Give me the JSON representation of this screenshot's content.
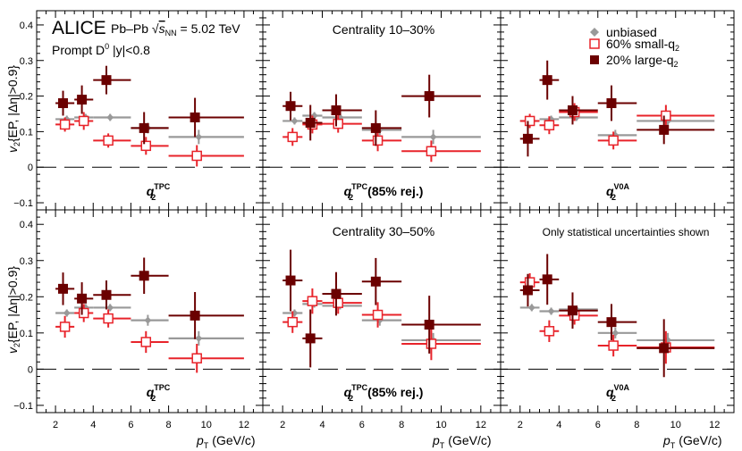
{
  "figure": {
    "experiment": "ALICE",
    "system": "Pb–Pb",
    "energy_sqrt": "s",
    "energy_sub": "NN",
    "energy_value": "= 5.02 TeV",
    "particle_prefix": "Prompt D",
    "particle_sup": "0",
    "rapidity_cut": "|y|<0.8",
    "note": "Only statistical uncertainties shown",
    "y_axis_label": "v",
    "y_axis_sub": "2",
    "y_axis_method": "{EP, |Δη|>0.9}",
    "x_axis_label": "p",
    "x_axis_sub": "T",
    "x_axis_units": "(GeV/c)",
    "legend": [
      {
        "label": "unbiased",
        "color": "#999999",
        "marker": "diamond"
      },
      {
        "label": "60% small-q",
        "sub": "2",
        "color": "#e8232a",
        "marker": "open-square"
      },
      {
        "label": "20% large-q",
        "sub": "2",
        "color": "#6b0000",
        "marker": "filled-square"
      }
    ],
    "centralities": [
      "Centrality 10–30%",
      "Centrality 30–50%"
    ],
    "estimators": [
      {
        "main": "q",
        "sub": "2",
        "sup": "TPC",
        "extra": ""
      },
      {
        "main": "q",
        "sub": "2",
        "sup": "TPC",
        "extra": "(85% rej.)"
      },
      {
        "main": "q",
        "sub": "2",
        "sup": "V0A",
        "extra": ""
      }
    ],
    "x_ticks": [
      "2",
      "4",
      "6",
      "8",
      "10",
      "12"
    ],
    "y_ticks": [
      "−0.1",
      "0",
      "0.1",
      "0.2",
      "0.3",
      "0.4"
    ]
  },
  "chart_data": {
    "type": "scatter",
    "xlim": [
      1,
      13
    ],
    "ylim": [
      -0.12,
      0.44
    ],
    "series_names": [
      "unbiased",
      "60% small-q2",
      "20% large-q2"
    ],
    "series_colors": [
      "#999999",
      "#e8232a",
      "#6b0000"
    ],
    "panels": [
      {
        "row": 0,
        "col": 0,
        "centrality": "Centrality 10–30%",
        "estimator": "q2 TPC",
        "series": [
          {
            "name": "unbiased",
            "points": [
              {
                "x": 2.5,
                "xlo": 2,
                "xhi": 3,
                "y": 0.135,
                "yerr": 0.01
              },
              {
                "x": 3.5,
                "xlo": 3,
                "xhi": 4,
                "y": 0.14,
                "yerr": 0.01
              },
              {
                "x": 4.8,
                "xlo": 4,
                "xhi": 6,
                "y": 0.14,
                "yerr": 0.01
              },
              {
                "x": 6.8,
                "xlo": 6,
                "xhi": 8,
                "y": 0.11,
                "yerr": 0.015
              },
              {
                "x": 9.5,
                "xlo": 8,
                "xhi": 12,
                "y": 0.085,
                "yerr": 0.02
              }
            ]
          },
          {
            "name": "60% small-q2",
            "points": [
              {
                "x": 2.5,
                "xlo": 2,
                "xhi": 3,
                "y": 0.12,
                "yerr": 0.02
              },
              {
                "x": 3.5,
                "xlo": 3,
                "xhi": 4,
                "y": 0.13,
                "yerr": 0.025
              },
              {
                "x": 4.8,
                "xlo": 4,
                "xhi": 6,
                "y": 0.075,
                "yerr": 0.02
              },
              {
                "x": 6.8,
                "xlo": 6,
                "xhi": 8,
                "y": 0.06,
                "yerr": 0.025
              },
              {
                "x": 9.5,
                "xlo": 8,
                "xhi": 12,
                "y": 0.032,
                "yerr": 0.03
              }
            ]
          },
          {
            "name": "20% large-q2",
            "points": [
              {
                "x": 2.5,
                "xlo": 2,
                "xhi": 3,
                "y": 0.18,
                "yerr": 0.035
              },
              {
                "x": 3.5,
                "xlo": 3,
                "xhi": 4,
                "y": 0.19,
                "yerr": 0.04
              },
              {
                "x": 4.8,
                "xlo": 4,
                "xhi": 6,
                "y": 0.245,
                "yerr": 0.04
              },
              {
                "x": 6.8,
                "xlo": 6,
                "xhi": 8,
                "y": 0.11,
                "yerr": 0.045
              },
              {
                "x": 9.5,
                "xlo": 8,
                "xhi": 12,
                "y": 0.14,
                "yerr": 0.055
              }
            ]
          }
        ]
      },
      {
        "row": 0,
        "col": 1,
        "centrality": "Centrality 10–30%",
        "estimator": "q2 TPC (85% rej.)",
        "series": [
          {
            "name": "unbiased",
            "points": [
              {
                "x": 2.5,
                "xlo": 2,
                "xhi": 3,
                "y": 0.13,
                "yerr": 0.01
              },
              {
                "x": 3.5,
                "xlo": 3,
                "xhi": 4,
                "y": 0.145,
                "yerr": 0.01
              },
              {
                "x": 4.8,
                "xlo": 4,
                "xhi": 6,
                "y": 0.14,
                "yerr": 0.01
              },
              {
                "x": 6.8,
                "xlo": 6,
                "xhi": 8,
                "y": 0.105,
                "yerr": 0.015
              },
              {
                "x": 9.5,
                "xlo": 8,
                "xhi": 12,
                "y": 0.085,
                "yerr": 0.02
              }
            ]
          },
          {
            "name": "60% small-q2",
            "points": [
              {
                "x": 2.5,
                "xlo": 2,
                "xhi": 3,
                "y": 0.085,
                "yerr": 0.025
              },
              {
                "x": 3.5,
                "xlo": 3,
                "xhi": 4,
                "y": 0.12,
                "yerr": 0.025
              },
              {
                "x": 4.8,
                "xlo": 4,
                "xhi": 6,
                "y": 0.122,
                "yerr": 0.025
              },
              {
                "x": 6.8,
                "xlo": 6,
                "xhi": 8,
                "y": 0.075,
                "yerr": 0.03
              },
              {
                "x": 9.5,
                "xlo": 8,
                "xhi": 12,
                "y": 0.045,
                "yerr": 0.03
              }
            ]
          },
          {
            "name": "20% large-q2",
            "points": [
              {
                "x": 2.5,
                "xlo": 2,
                "xhi": 3,
                "y": 0.172,
                "yerr": 0.04
              },
              {
                "x": 3.5,
                "xlo": 3,
                "xhi": 4,
                "y": 0.125,
                "yerr": 0.05
              },
              {
                "x": 4.8,
                "xlo": 4,
                "xhi": 6,
                "y": 0.16,
                "yerr": 0.045
              },
              {
                "x": 6.8,
                "xlo": 6,
                "xhi": 8,
                "y": 0.11,
                "yerr": 0.05
              },
              {
                "x": 9.5,
                "xlo": 8,
                "xhi": 12,
                "y": 0.2,
                "yerr": 0.06
              }
            ]
          }
        ]
      },
      {
        "row": 0,
        "col": 2,
        "centrality": "Centrality 10–30%",
        "estimator": "q2 V0A",
        "series": [
          {
            "name": "unbiased",
            "points": [
              {
                "x": 2.5,
                "xlo": 2,
                "xhi": 3,
                "y": 0.13,
                "yerr": 0.01
              },
              {
                "x": 3.5,
                "xlo": 3,
                "xhi": 4,
                "y": 0.135,
                "yerr": 0.01
              },
              {
                "x": 4.8,
                "xlo": 4,
                "xhi": 6,
                "y": 0.14,
                "yerr": 0.01
              },
              {
                "x": 6.8,
                "xlo": 6,
                "xhi": 8,
                "y": 0.09,
                "yerr": 0.015
              },
              {
                "x": 9.5,
                "xlo": 8,
                "xhi": 12,
                "y": 0.13,
                "yerr": 0.02
              }
            ]
          },
          {
            "name": "60% small-q2",
            "points": [
              {
                "x": 2.5,
                "xlo": 2,
                "xhi": 3,
                "y": 0.13,
                "yerr": 0.02
              },
              {
                "x": 3.5,
                "xlo": 3,
                "xhi": 4,
                "y": 0.118,
                "yerr": 0.025
              },
              {
                "x": 4.8,
                "xlo": 4,
                "xhi": 6,
                "y": 0.155,
                "yerr": 0.025
              },
              {
                "x": 6.8,
                "xlo": 6,
                "xhi": 8,
                "y": 0.075,
                "yerr": 0.025
              },
              {
                "x": 9.5,
                "xlo": 8,
                "xhi": 12,
                "y": 0.145,
                "yerr": 0.03
              }
            ]
          },
          {
            "name": "20% large-q2",
            "points": [
              {
                "x": 2.5,
                "xlo": 2,
                "xhi": 3,
                "y": 0.08,
                "yerr": 0.05
              },
              {
                "x": 3.5,
                "xlo": 3,
                "xhi": 4,
                "y": 0.245,
                "yerr": 0.055
              },
              {
                "x": 4.8,
                "xlo": 4,
                "xhi": 6,
                "y": 0.16,
                "yerr": 0.04
              },
              {
                "x": 6.8,
                "xlo": 6,
                "xhi": 8,
                "y": 0.18,
                "yerr": 0.05
              },
              {
                "x": 9.5,
                "xlo": 8,
                "xhi": 12,
                "y": 0.105,
                "yerr": 0.04
              }
            ]
          }
        ]
      },
      {
        "row": 1,
        "col": 0,
        "centrality": "Centrality 30–50%",
        "estimator": "q2 TPC",
        "series": [
          {
            "name": "unbiased",
            "points": [
              {
                "x": 2.5,
                "xlo": 2,
                "xhi": 3,
                "y": 0.155,
                "yerr": 0.01
              },
              {
                "x": 3.5,
                "xlo": 3,
                "xhi": 4,
                "y": 0.17,
                "yerr": 0.01
              },
              {
                "x": 4.8,
                "xlo": 4,
                "xhi": 6,
                "y": 0.17,
                "yerr": 0.01
              },
              {
                "x": 6.8,
                "xlo": 6,
                "xhi": 8,
                "y": 0.135,
                "yerr": 0.015
              },
              {
                "x": 9.5,
                "xlo": 8,
                "xhi": 12,
                "y": 0.085,
                "yerr": 0.02
              }
            ]
          },
          {
            "name": "60% small-q2",
            "points": [
              {
                "x": 2.5,
                "xlo": 2,
                "xhi": 3,
                "y": 0.117,
                "yerr": 0.03
              },
              {
                "x": 3.5,
                "xlo": 3,
                "xhi": 4,
                "y": 0.155,
                "yerr": 0.025
              },
              {
                "x": 4.8,
                "xlo": 4,
                "xhi": 6,
                "y": 0.14,
                "yerr": 0.025
              },
              {
                "x": 6.8,
                "xlo": 6,
                "xhi": 8,
                "y": 0.075,
                "yerr": 0.03
              },
              {
                "x": 9.5,
                "xlo": 8,
                "xhi": 12,
                "y": 0.03,
                "yerr": 0.04
              }
            ]
          },
          {
            "name": "20% large-q2",
            "points": [
              {
                "x": 2.5,
                "xlo": 2,
                "xhi": 3,
                "y": 0.222,
                "yerr": 0.045
              },
              {
                "x": 3.5,
                "xlo": 3,
                "xhi": 4,
                "y": 0.195,
                "yerr": 0.045
              },
              {
                "x": 4.8,
                "xlo": 4,
                "xhi": 6,
                "y": 0.205,
                "yerr": 0.04
              },
              {
                "x": 6.8,
                "xlo": 6,
                "xhi": 8,
                "y": 0.258,
                "yerr": 0.05
              },
              {
                "x": 9.5,
                "xlo": 8,
                "xhi": 12,
                "y": 0.148,
                "yerr": 0.065
              }
            ]
          }
        ]
      },
      {
        "row": 1,
        "col": 1,
        "centrality": "Centrality 30–50%",
        "estimator": "q2 TPC (85% rej.)",
        "series": [
          {
            "name": "unbiased",
            "points": [
              {
                "x": 2.5,
                "xlo": 2,
                "xhi": 3,
                "y": 0.155,
                "yerr": 0.01
              },
              {
                "x": 3.5,
                "xlo": 3,
                "xhi": 4,
                "y": 0.18,
                "yerr": 0.01
              },
              {
                "x": 4.8,
                "xlo": 4,
                "xhi": 6,
                "y": 0.175,
                "yerr": 0.01
              },
              {
                "x": 6.8,
                "xlo": 6,
                "xhi": 8,
                "y": 0.135,
                "yerr": 0.015
              },
              {
                "x": 9.5,
                "xlo": 8,
                "xhi": 12,
                "y": 0.08,
                "yerr": 0.02
              }
            ]
          },
          {
            "name": "60% small-q2",
            "points": [
              {
                "x": 2.5,
                "xlo": 2,
                "xhi": 3,
                "y": 0.13,
                "yerr": 0.03
              },
              {
                "x": 3.5,
                "xlo": 3,
                "xhi": 4,
                "y": 0.188,
                "yerr": 0.035
              },
              {
                "x": 4.8,
                "xlo": 4,
                "xhi": 6,
                "y": 0.183,
                "yerr": 0.03
              },
              {
                "x": 6.8,
                "xlo": 6,
                "xhi": 8,
                "y": 0.15,
                "yerr": 0.035
              },
              {
                "x": 9.5,
                "xlo": 8,
                "xhi": 12,
                "y": 0.07,
                "yerr": 0.045
              }
            ]
          },
          {
            "name": "20% large-q2",
            "points": [
              {
                "x": 2.5,
                "xlo": 2,
                "xhi": 3,
                "y": 0.245,
                "yerr": 0.085
              },
              {
                "x": 3.5,
                "xlo": 3,
                "xhi": 4,
                "y": 0.085,
                "yerr": 0.08
              },
              {
                "x": 4.8,
                "xlo": 4,
                "xhi": 6,
                "y": 0.208,
                "yerr": 0.06
              },
              {
                "x": 6.8,
                "xlo": 6,
                "xhi": 8,
                "y": 0.242,
                "yerr": 0.065
              },
              {
                "x": 9.5,
                "xlo": 8,
                "xhi": 12,
                "y": 0.123,
                "yerr": 0.08
              }
            ]
          }
        ]
      },
      {
        "row": 1,
        "col": 2,
        "centrality": "Centrality 30–50%",
        "estimator": "q2 V0A",
        "series": [
          {
            "name": "unbiased",
            "points": [
              {
                "x": 2.5,
                "xlo": 2,
                "xhi": 3,
                "y": 0.17,
                "yerr": 0.01
              },
              {
                "x": 3.5,
                "xlo": 3,
                "xhi": 4,
                "y": 0.16,
                "yerr": 0.01
              },
              {
                "x": 4.8,
                "xlo": 4,
                "xhi": 6,
                "y": 0.165,
                "yerr": 0.01
              },
              {
                "x": 6.8,
                "xlo": 6,
                "xhi": 8,
                "y": 0.1,
                "yerr": 0.015
              },
              {
                "x": 9.5,
                "xlo": 8,
                "xhi": 12,
                "y": 0.08,
                "yerr": 0.02
              }
            ]
          },
          {
            "name": "60% small-q2",
            "points": [
              {
                "x": 2.5,
                "xlo": 2,
                "xhi": 3,
                "y": 0.24,
                "yerr": 0.025
              },
              {
                "x": 3.5,
                "xlo": 3,
                "xhi": 4,
                "y": 0.105,
                "yerr": 0.03
              },
              {
                "x": 4.8,
                "xlo": 4,
                "xhi": 6,
                "y": 0.148,
                "yerr": 0.025
              },
              {
                "x": 6.8,
                "xlo": 6,
                "xhi": 8,
                "y": 0.065,
                "yerr": 0.03
              },
              {
                "x": 9.5,
                "xlo": 8,
                "xhi": 12,
                "y": 0.06,
                "yerr": 0.045
              }
            ]
          },
          {
            "name": "20% large-q2",
            "points": [
              {
                "x": 2.5,
                "xlo": 2,
                "xhi": 3,
                "y": 0.218,
                "yerr": 0.045
              },
              {
                "x": 3.5,
                "xlo": 3,
                "xhi": 4,
                "y": 0.248,
                "yerr": 0.07
              },
              {
                "x": 4.8,
                "xlo": 4,
                "xhi": 6,
                "y": 0.162,
                "yerr": 0.05
              },
              {
                "x": 6.8,
                "xlo": 6,
                "xhi": 8,
                "y": 0.13,
                "yerr": 0.05
              },
              {
                "x": 9.5,
                "xlo": 8,
                "xhi": 12,
                "y": 0.058,
                "yerr": 0.08
              }
            ]
          }
        ]
      }
    ]
  }
}
